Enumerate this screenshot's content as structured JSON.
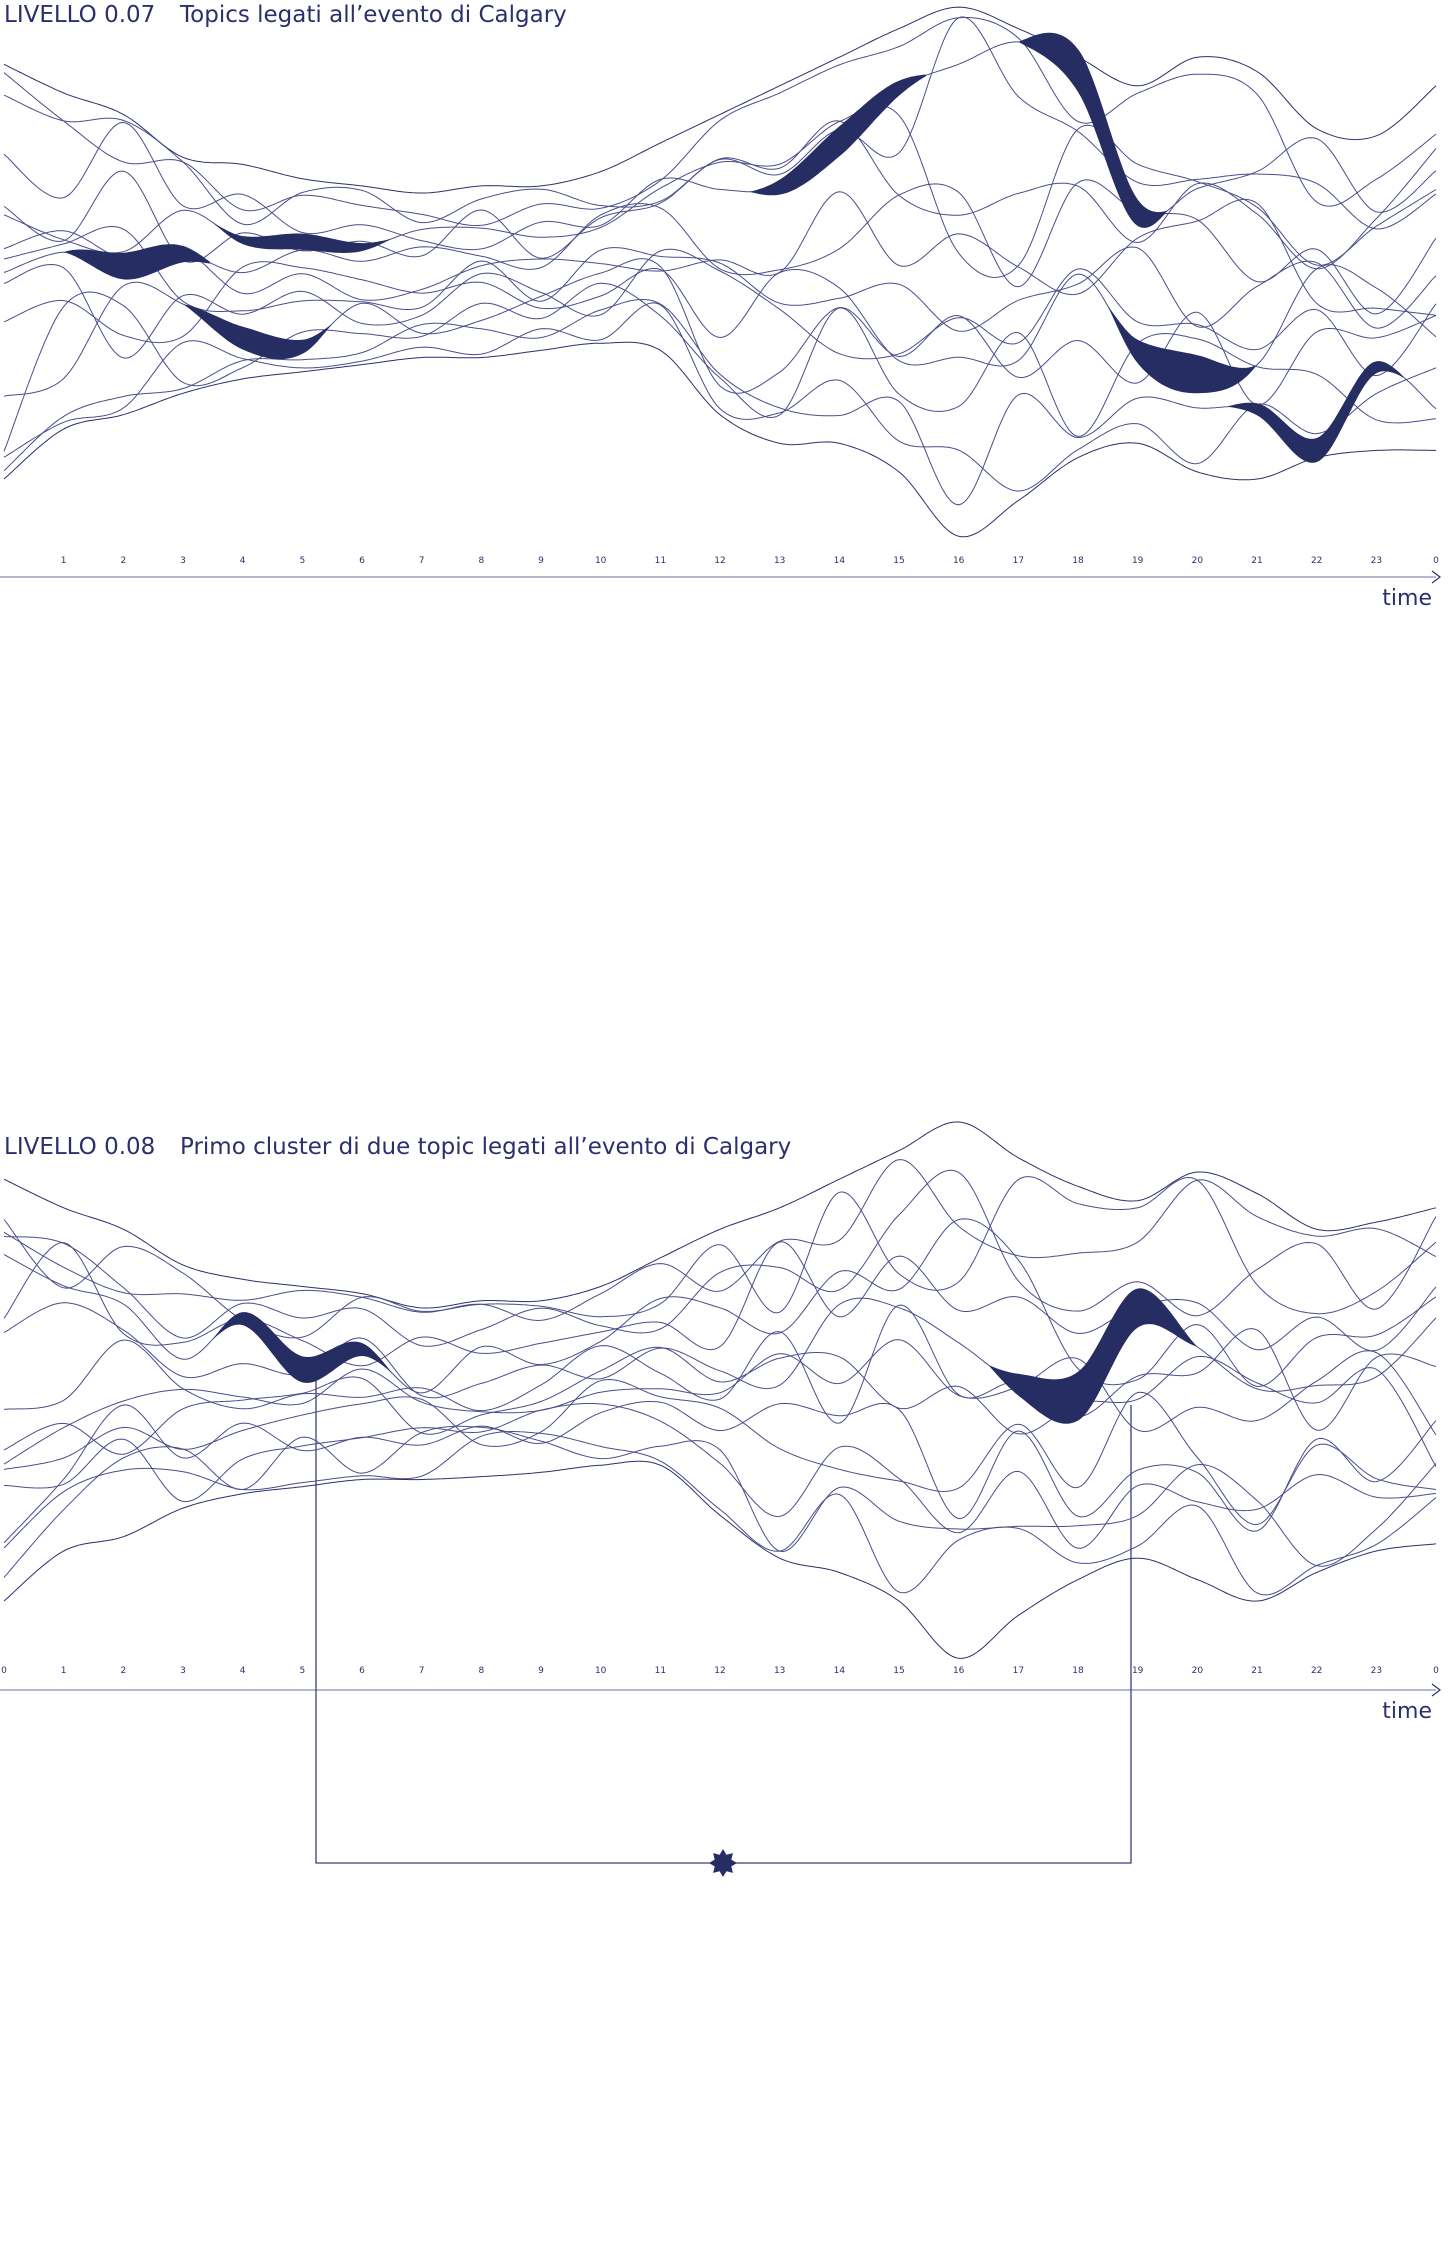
{
  "panels": [
    {
      "level": "LIVELLO 0.07",
      "title": "Topics legati all’evento di Calgary",
      "ticks": [
        "1",
        "2",
        "3",
        "4",
        "5",
        "6",
        "7",
        "8",
        "9",
        "10",
        "11",
        "12",
        "13",
        "14",
        "15",
        "16",
        "17",
        "18",
        "19",
        "20",
        "21",
        "22",
        "23",
        "0"
      ],
      "axis_label": "time"
    },
    {
      "level": "LIVELLO 0.08",
      "title": "Primo cluster di due topic legati all’evento di Calgary",
      "ticks": [
        "0",
        "1",
        "2",
        "3",
        "4",
        "5",
        "6",
        "7",
        "8",
        "9",
        "10",
        "11",
        "12",
        "13",
        "14",
        "15",
        "16",
        "17",
        "18",
        "19",
        "20",
        "21",
        "22",
        "23",
        "0"
      ],
      "axis_label": "time"
    }
  ]
}
